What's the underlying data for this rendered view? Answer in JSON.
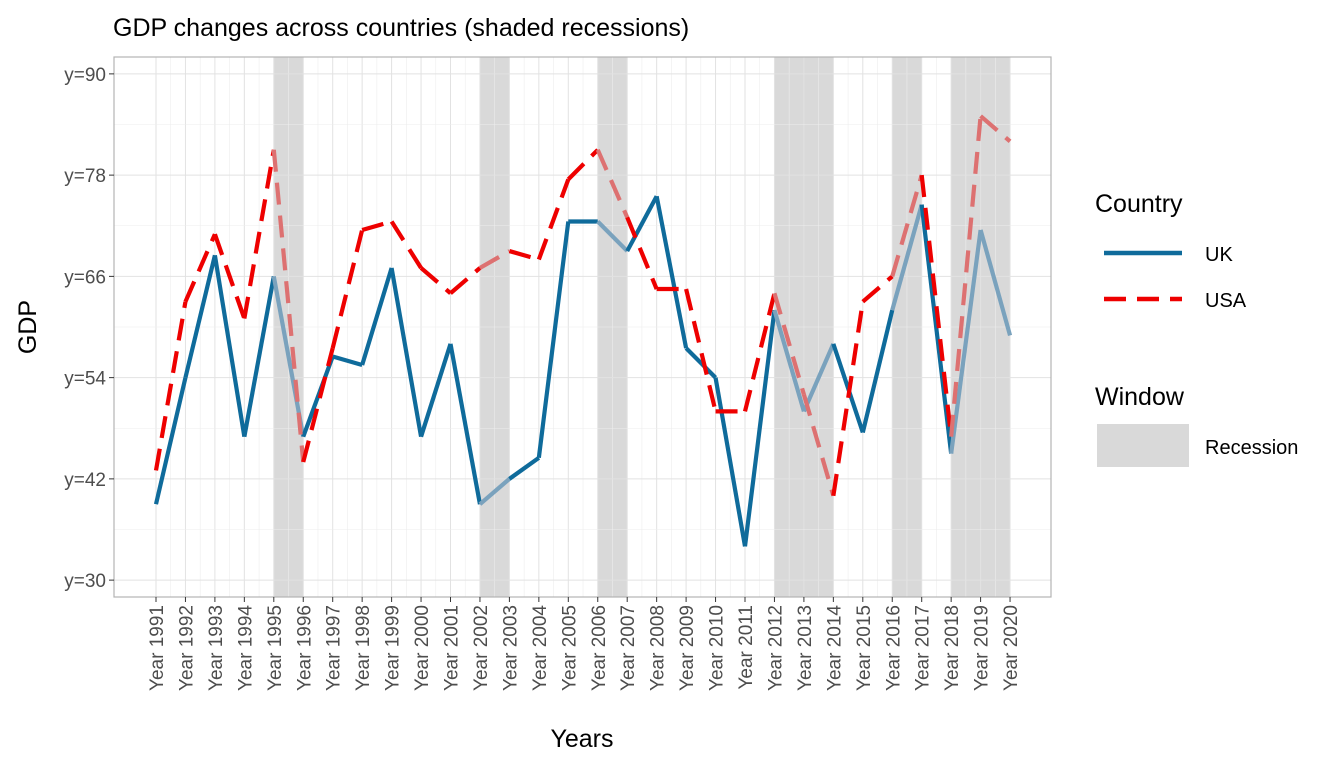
{
  "chart_data": {
    "type": "line",
    "title": "GDP changes across countries (shaded recessions)",
    "xlabel": "Years",
    "ylabel": "GDP",
    "categories": [
      "Year 1991",
      "Year 1992",
      "Year 1993",
      "Year 1994",
      "Year 1995",
      "Year 1996",
      "Year 1997",
      "Year 1998",
      "Year 1999",
      "Year 2000",
      "Year 2001",
      "Year 2002",
      "Year 2003",
      "Year 2004",
      "Year 2005",
      "Year 2006",
      "Year 2007",
      "Year 2008",
      "Year 2009",
      "Year 2010",
      "Year 2011",
      "Year 2012",
      "Year 2013",
      "Year 2014",
      "Year 2015",
      "Year 2016",
      "Year 2017",
      "Year 2018",
      "Year 2019",
      "Year 2020"
    ],
    "y_ticks": [
      30,
      42,
      54,
      66,
      78,
      90
    ],
    "y_tick_labels": [
      "y=30",
      "y=42",
      "y=54",
      "y=66",
      "y=78",
      "y=90"
    ],
    "ylim": [
      28,
      92
    ],
    "grid": true,
    "legend_position": "right",
    "series": [
      {
        "name": "UK",
        "color": "#0f6b9b",
        "dash": "solid",
        "values": [
          39,
          54,
          68.5,
          47,
          66,
          47,
          56.5,
          55.5,
          67,
          47,
          58,
          39,
          42,
          44.5,
          72.5,
          72.5,
          69,
          75.5,
          57.5,
          54,
          34,
          62,
          50,
          58,
          47.5,
          62,
          74.5,
          45,
          71.5,
          59
        ]
      },
      {
        "name": "USA",
        "color": "#ee0000",
        "dash": "dashed",
        "values": [
          43,
          63,
          71,
          61,
          81,
          44,
          57.5,
          71.5,
          72.5,
          67,
          64,
          67,
          69,
          68,
          77.5,
          81,
          73,
          64.5,
          64.5,
          50,
          50,
          64,
          52,
          40,
          63,
          66,
          78,
          47,
          85,
          82
        ]
      }
    ],
    "shade_legend_title": "Window",
    "shade_label": "Recession",
    "shade_color": "#d9d9d9",
    "recessions": [
      {
        "start": "Year 1995",
        "end": "Year 1996"
      },
      {
        "start": "Year 2002",
        "end": "Year 2003"
      },
      {
        "start": "Year 2006",
        "end": "Year 2007"
      },
      {
        "start": "Year 2012",
        "end": "Year 2014"
      },
      {
        "start": "Year 2016",
        "end": "Year 2016"
      },
      {
        "start": "Year 2018",
        "end": "Year 2020"
      }
    ],
    "legend_title": "Country"
  }
}
